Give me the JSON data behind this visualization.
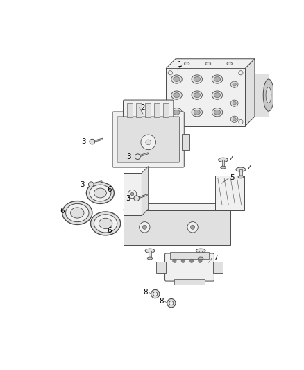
{
  "background_color": "#ffffff",
  "fig_width": 4.38,
  "fig_height": 5.33,
  "dpi": 100,
  "line_color": "#4a4a4a",
  "fill_light": "#f0f0f0",
  "fill_mid": "#e0e0e0",
  "fill_dark": "#c8c8c8"
}
